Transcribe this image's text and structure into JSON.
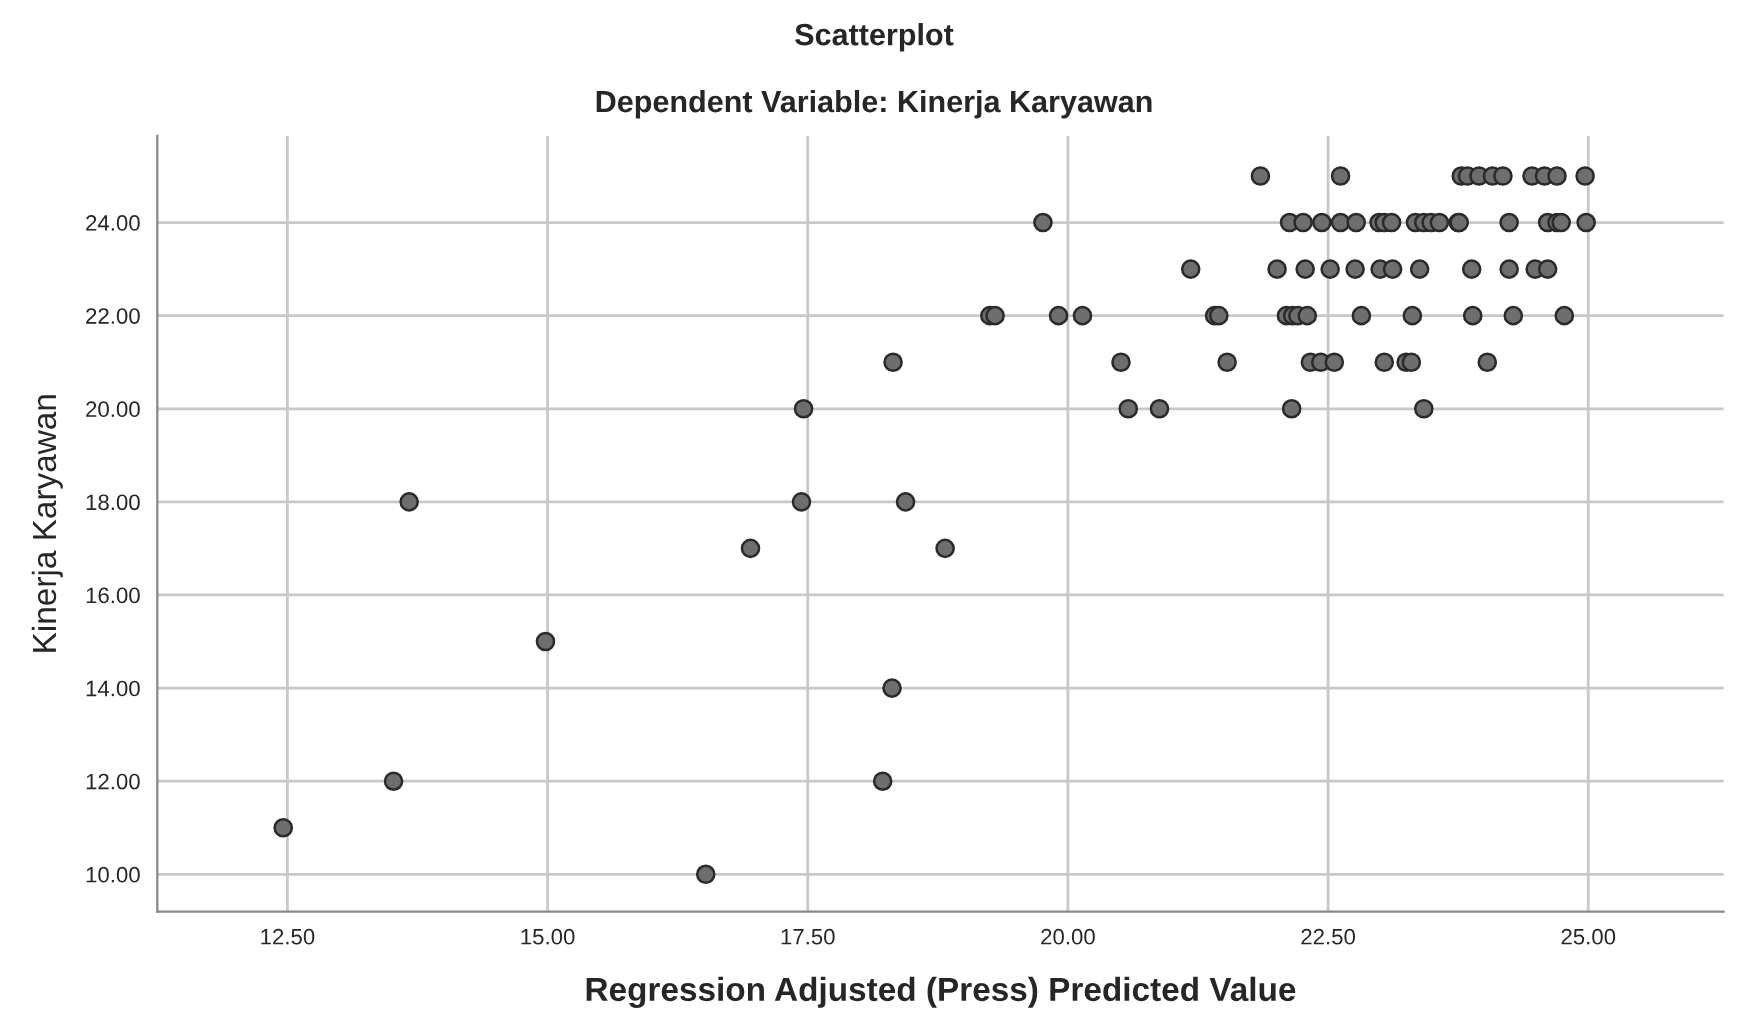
{
  "chart_data": {
    "type": "scatter",
    "title": "Scatterplot",
    "subtitle": "Dependent Variable: Kinerja Karyawan",
    "xlabel": "Regression Adjusted (Press) Predicted Value",
    "ylabel": "Kinerja Karyawan",
    "xlim": [
      11.25,
      26.3
    ],
    "ylim": [
      9.2,
      25.86
    ],
    "xticks": [
      {
        "value": 12.5,
        "label": "12.50"
      },
      {
        "value": 15,
        "label": "15.00"
      },
      {
        "value": 17.5,
        "label": "17.50"
      },
      {
        "value": 20,
        "label": "20.00"
      },
      {
        "value": 22.5,
        "label": "22.50"
      },
      {
        "value": 25,
        "label": "25.00"
      }
    ],
    "yticks": [
      {
        "value": 10,
        "label": "10.00"
      },
      {
        "value": 12,
        "label": "12.00"
      },
      {
        "value": 14,
        "label": "14.00"
      },
      {
        "value": 16,
        "label": "16.00"
      },
      {
        "value": 18,
        "label": "18.00"
      },
      {
        "value": 20,
        "label": "20.00"
      },
      {
        "value": 22,
        "label": "22.00"
      },
      {
        "value": 24,
        "label": "24.00"
      }
    ],
    "grid": true,
    "marker": "circle",
    "series": [
      {
        "color": "#6e6e6e",
        "x": [
          19.25,
          19.3,
          18.32,
          17.46,
          13.67,
          17.44,
          18.44,
          16.95,
          18.82,
          14.98,
          18.31,
          13.52,
          18.22,
          12.46,
          16.52,
          21.85,
          22.62,
          23.78,
          23.84,
          23.95,
          24.08,
          24.18,
          24.46,
          24.58,
          24.7,
          24.97,
          19.76,
          22.13,
          22.26,
          22.44,
          22.62,
          22.77,
          22.99,
          23.04,
          23.11,
          23.34,
          23.42,
          23.49,
          23.57,
          23.75,
          23.76,
          24.24,
          24.61,
          24.7,
          24.74,
          24.98,
          21.18,
          22.01,
          22.28,
          22.52,
          22.76,
          23.0,
          23.12,
          23.38,
          23.88,
          24.24,
          24.49,
          24.61,
          19.91,
          20.14,
          21.41,
          21.45,
          22.1,
          22.16,
          22.21,
          22.3,
          22.82,
          23.31,
          23.89,
          24.28,
          24.77,
          20.51,
          21.53,
          22.33,
          22.43,
          22.56,
          23.04,
          23.25,
          23.3,
          24.03,
          20.58,
          20.88,
          22.15,
          23.42
        ],
        "values": [
          22,
          22,
          21,
          20,
          18,
          18,
          18,
          17,
          17,
          15,
          14,
          12,
          12,
          11,
          10,
          25,
          25,
          25,
          25,
          25,
          25,
          25,
          25,
          25,
          25,
          25,
          24,
          24,
          24,
          24,
          24,
          24,
          24,
          24,
          24,
          24,
          24,
          24,
          24,
          24,
          24,
          24,
          24,
          24,
          24,
          24,
          23,
          23,
          23,
          23,
          23,
          23,
          23,
          23,
          23,
          23,
          23,
          23,
          22,
          22,
          22,
          22,
          22,
          22,
          22,
          22,
          22,
          22,
          22,
          22,
          22,
          21,
          21,
          21,
          21,
          21,
          21,
          21,
          21,
          21,
          20,
          20,
          20,
          20
        ]
      }
    ]
  }
}
